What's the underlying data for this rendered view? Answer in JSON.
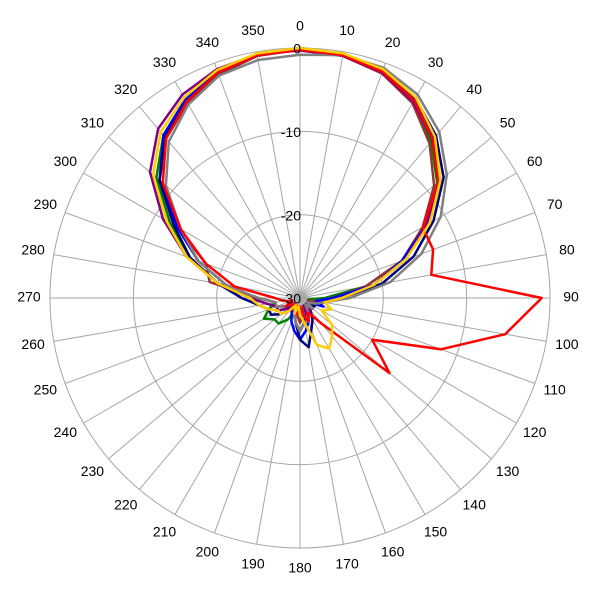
{
  "chart_data": {
    "type": "polar",
    "x": [
      0,
      10,
      20,
      30,
      40,
      50,
      60,
      70,
      80,
      90,
      100,
      110,
      120,
      130,
      140,
      150,
      160,
      170,
      180,
      190,
      200,
      210,
      220,
      230,
      240,
      250,
      260,
      270,
      280,
      290,
      300,
      310,
      320,
      330,
      340,
      350
    ],
    "xticks": [
      0,
      10,
      20,
      30,
      40,
      50,
      60,
      70,
      80,
      90,
      100,
      110,
      120,
      130,
      140,
      150,
      160,
      170,
      180,
      190,
      200,
      210,
      220,
      230,
      240,
      250,
      260,
      270,
      280,
      290,
      300,
      310,
      320,
      330,
      340,
      350
    ],
    "ylim": [
      -30,
      0
    ],
    "yticks": [
      -30,
      -20,
      -10,
      0
    ],
    "series": [
      {
        "color": "#008000",
        "values": [
          0,
          -0.4,
          -1.2,
          -2.8,
          -5.5,
          -8.5,
          -12.5,
          -17,
          -22,
          -27,
          -29,
          -28,
          -29,
          -29,
          -28,
          -29,
          -28,
          -27,
          -26,
          -27,
          -28,
          -27,
          -26,
          -26,
          -25,
          -26,
          -27,
          -25,
          -20,
          -16,
          -12,
          -7.5,
          -4.5,
          -2.5,
          -1.2,
          -0.4
        ]
      },
      {
        "color": "#993333",
        "values": [
          -0.2,
          -0.5,
          -1.3,
          -3,
          -5.8,
          -9,
          -13,
          -17,
          -22,
          -26,
          -28,
          -29,
          -28,
          -29,
          -29,
          -28,
          -29,
          -28,
          -27,
          -28,
          -29,
          -28,
          -29,
          -28,
          -28,
          -27,
          -27,
          -25,
          -19,
          -18,
          -13,
          -8,
          -5,
          -3,
          -1.5,
          -0.5
        ]
      },
      {
        "color": "#0000ff",
        "values": [
          0,
          -0.3,
          -1,
          -2.5,
          -5,
          -8,
          -12.5,
          -17,
          -21,
          -26,
          -28,
          -27,
          -29,
          -28,
          -29,
          -28,
          -27,
          -26,
          -25,
          -26,
          -27,
          -28,
          -29,
          -28,
          -27,
          -27,
          -26,
          -24,
          -21,
          -17,
          -13,
          -8,
          -4.5,
          -2.5,
          -1,
          -0.3
        ]
      },
      {
        "color": "#000080",
        "values": [
          0,
          -0.3,
          -0.9,
          -2.3,
          -4.6,
          -7.5,
          -11.5,
          -15.5,
          -20,
          -25,
          -27,
          -28,
          -28,
          -29,
          -28,
          -27,
          -26,
          -24,
          -25,
          -27,
          -28,
          -29,
          -28,
          -27,
          -26,
          -26,
          -25,
          -23,
          -20,
          -16,
          -12.5,
          -8,
          -4.8,
          -2.8,
          -1.2,
          -0.4
        ]
      },
      {
        "color": "#800080",
        "values": [
          -0.3,
          -0.5,
          -1.2,
          -2.8,
          -5.2,
          -8.3,
          -12.5,
          -16.5,
          -21,
          -25,
          -27,
          -28,
          -29,
          -29,
          -28,
          -29,
          -28,
          -27,
          -26,
          -27,
          -28,
          -29,
          -28,
          -28,
          -27,
          -27,
          -26,
          -24,
          -20,
          -15.5,
          -11,
          -6.5,
          -3.5,
          -1.8,
          -0.8,
          -0.3
        ]
      },
      {
        "color": "#808080",
        "values": [
          -0.8,
          -0.4,
          -0.6,
          -1.8,
          -4,
          -7,
          -10.5,
          -14.5,
          -19,
          -24,
          -27,
          -28,
          -29,
          -28,
          -29,
          -28,
          -27,
          -27,
          -26,
          -27,
          -28,
          -29,
          -28,
          -29,
          -28,
          -27,
          -27,
          -25,
          -21,
          -17,
          -13.5,
          -9,
          -5.5,
          -3.2,
          -1.6,
          -1
        ]
      },
      {
        "color": "#ff0000",
        "values": [
          -0.2,
          -0.4,
          -1.1,
          -2.6,
          -5.2,
          -8.3,
          -13,
          -13,
          -14,
          -1,
          -5,
          -12,
          -20,
          -16,
          -26,
          -28,
          -27,
          -28,
          -29,
          -28,
          -29,
          -29,
          -28,
          -29,
          -28,
          -29,
          -28,
          -27,
          -22,
          -18,
          -13.5,
          -8.5,
          -5,
          -2.8,
          -1.2,
          -0.4
        ]
      },
      {
        "color": "#ffcc00",
        "values": [
          0,
          -0.2,
          -0.8,
          -2.2,
          -4.8,
          -8,
          -12,
          -16.5,
          -21,
          -25,
          -27,
          -26,
          -27,
          -25,
          -24,
          -23,
          -24,
          -27,
          -28,
          -29,
          -28,
          -29,
          -28,
          -27,
          -27,
          -26,
          -25,
          -24,
          -20,
          -15.5,
          -11.5,
          -7,
          -4,
          -2.2,
          -0.9,
          -0.2
        ]
      }
    ]
  }
}
